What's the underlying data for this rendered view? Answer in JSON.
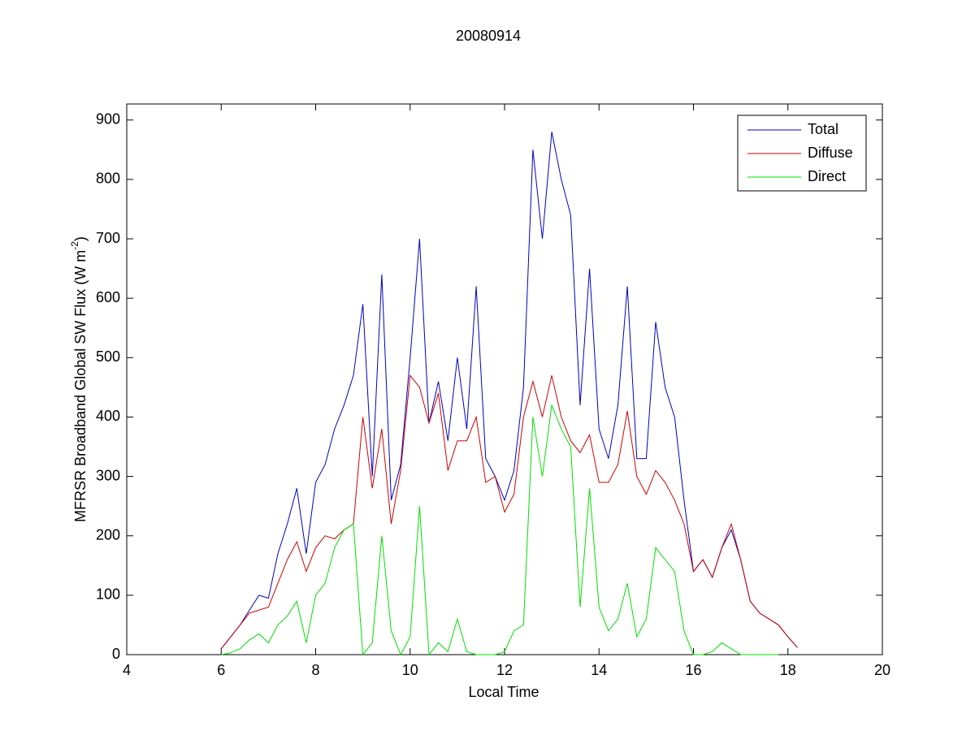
{
  "chart_data": {
    "type": "line",
    "title": "20080914",
    "xlabel": "Local Time",
    "ylabel": {
      "text": "MFRSR Broadband Global SW Flux (W m",
      "superscript": "-2",
      "suffix": ")"
    },
    "x": [
      6.0,
      6.2,
      6.4,
      6.6,
      6.8,
      7.0,
      7.2,
      7.4,
      7.6,
      7.8,
      8.0,
      8.2,
      8.4,
      8.6,
      8.8,
      9.0,
      9.2,
      9.4,
      9.6,
      9.8,
      10.0,
      10.2,
      10.4,
      10.6,
      10.8,
      11.0,
      11.2,
      11.4,
      11.6,
      11.8,
      12.0,
      12.2,
      12.4,
      12.6,
      12.8,
      13.0,
      13.2,
      13.4,
      13.6,
      13.8,
      14.0,
      14.2,
      14.4,
      14.6,
      14.8,
      15.0,
      15.2,
      15.4,
      15.6,
      15.8,
      16.0,
      16.2,
      16.4,
      16.6,
      16.8,
      17.0,
      17.2,
      17.4,
      17.6,
      17.8,
      18.0,
      18.2
    ],
    "series": [
      {
        "name": "Total",
        "color": "#0000c8",
        "values": [
          10,
          30,
          50,
          75,
          100,
          95,
          170,
          220,
          280,
          170,
          290,
          320,
          380,
          420,
          470,
          590,
          300,
          640,
          260,
          320,
          500,
          700,
          390,
          460,
          360,
          500,
          380,
          620,
          330,
          300,
          260,
          310,
          450,
          850,
          700,
          880,
          800,
          740,
          420,
          650,
          380,
          330,
          420,
          620,
          330,
          330,
          560,
          450,
          400,
          260,
          140,
          160,
          130,
          180,
          210,
          160,
          90,
          70,
          60,
          50,
          30,
          12
        ]
      },
      {
        "name": "Diffuse",
        "color": "#d00000",
        "values": [
          10,
          30,
          50,
          70,
          75,
          80,
          120,
          160,
          190,
          140,
          180,
          200,
          195,
          210,
          220,
          400,
          280,
          380,
          220,
          310,
          470,
          450,
          390,
          440,
          310,
          360,
          360,
          400,
          290,
          300,
          240,
          270,
          400,
          460,
          400,
          470,
          400,
          360,
          340,
          370,
          290,
          290,
          320,
          410,
          300,
          270,
          310,
          290,
          260,
          220,
          140,
          160,
          130,
          180,
          220,
          160,
          90,
          70,
          60,
          50,
          30,
          12
        ]
      },
      {
        "name": "Direct",
        "color": "#00e000",
        "values": [
          0,
          3,
          10,
          25,
          35,
          20,
          50,
          65,
          90,
          20,
          100,
          120,
          180,
          210,
          220,
          0,
          20,
          200,
          40,
          0,
          30,
          250,
          0,
          20,
          5,
          60,
          5,
          0,
          0,
          0,
          5,
          40,
          50,
          400,
          300,
          420,
          380,
          350,
          80,
          280,
          80,
          40,
          60,
          120,
          30,
          60,
          180,
          160,
          140,
          40,
          0,
          0,
          5,
          20,
          10,
          0,
          0,
          0,
          0,
          0,
          null,
          null
        ]
      }
    ],
    "xlim": [
      4,
      20
    ],
    "xticks": [
      4,
      6,
      8,
      10,
      12,
      14,
      16,
      18,
      20
    ],
    "ylim": [
      0,
      927
    ],
    "yticks": [
      0,
      100,
      200,
      300,
      400,
      500,
      600,
      700,
      800,
      900
    ],
    "legend": "upper right",
    "grid": false
  }
}
